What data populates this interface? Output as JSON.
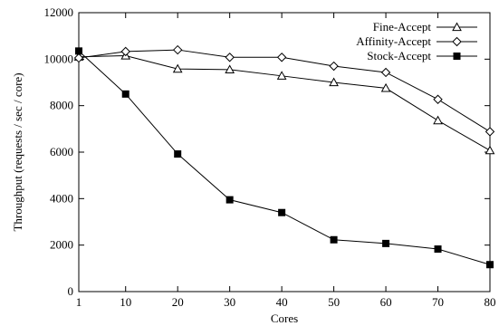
{
  "chart_data": {
    "type": "line",
    "title": "",
    "xlabel": "Cores",
    "ylabel": "Throughput (requests / sec / core)",
    "x": [
      1,
      10,
      20,
      30,
      40,
      50,
      60,
      70,
      80
    ],
    "xticks": [
      "1",
      "10",
      "20",
      "30",
      "40",
      "50",
      "60",
      "70",
      "80"
    ],
    "xlim": [
      1,
      80
    ],
    "ylim": [
      0,
      12000
    ],
    "yticks": [
      "0",
      "2000",
      "4000",
      "6000",
      "8000",
      "10000",
      "12000"
    ],
    "grid": false,
    "legend_position": "top-right",
    "series": [
      {
        "name": "Fine-Accept",
        "marker": "open-triangle",
        "values": [
          10100,
          10150,
          9580,
          9550,
          9280,
          9000,
          8750,
          7360,
          6070
        ]
      },
      {
        "name": "Affinity-Accept",
        "marker": "open-diamond",
        "values": [
          10050,
          10330,
          10400,
          10080,
          10080,
          9700,
          9430,
          8270,
          6880
        ]
      },
      {
        "name": "Stock-Accept",
        "marker": "filled-square",
        "values": [
          10350,
          8500,
          5920,
          3950,
          3400,
          2230,
          2070,
          1830,
          1160
        ]
      }
    ]
  }
}
